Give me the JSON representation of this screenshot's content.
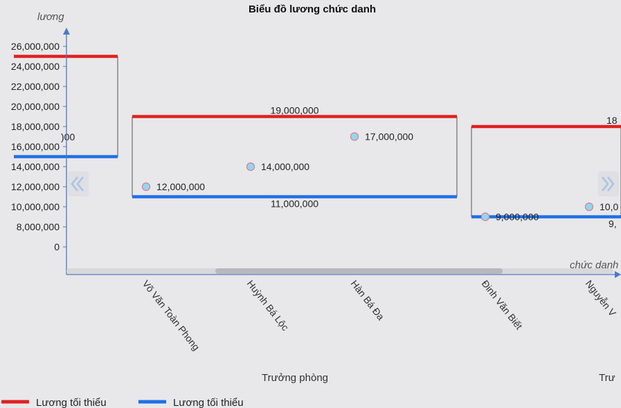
{
  "chart_data": {
    "type": "range-bar",
    "title": "Biểu đồ lương chức danh",
    "ylabel": "lương",
    "xlabel": "chức danh",
    "y_ticks": [
      0,
      8000000,
      10000000,
      12000000,
      14000000,
      16000000,
      18000000,
      20000000,
      22000000,
      24000000,
      26000000
    ],
    "y_tick_labels": [
      "0",
      "8,000,000",
      "10,000,000",
      "12,000,000",
      "14,000,000",
      "16,000,000",
      "18,000,000",
      "20,000,000",
      "22,000,000",
      "24,000,000",
      "26,000,000"
    ],
    "legend": [
      {
        "name": "Lương tối thiểu",
        "color": "#e02020"
      },
      {
        "name": "Lương tối thiểu",
        "color": "#1f6fe8"
      }
    ],
    "ranges": [
      {
        "group": "",
        "max": 25000000,
        "min": 15000000,
        "max_label": "",
        "min_label": "",
        "left_partial_label": ")00"
      },
      {
        "group": "Trưởng phòng",
        "max": 19000000,
        "min": 11000000,
        "max_label": "19,000,000",
        "min_label": "11,000,000"
      },
      {
        "group": "Trư",
        "max": 18000000,
        "min": 9000000,
        "max_label": "18",
        "min_label": "9,"
      }
    ],
    "points": [
      {
        "category": "Võ Văn Toàn Phong",
        "value": 12000000,
        "label": "12,000,000"
      },
      {
        "category": "Huỳnh Bá Lộc",
        "value": 14000000,
        "label": "14,000,000"
      },
      {
        "category": "Hàn Bá Đa",
        "value": 17000000,
        "label": "17,000,000"
      },
      {
        "category": "Đinh Văn Biết",
        "value": 9000000,
        "label": "9,000,000"
      },
      {
        "category": "Nguyễn V",
        "value": 10000000,
        "label": "10,0"
      }
    ],
    "colors": {
      "max": "#e02020",
      "min": "#1f6fe8",
      "point_fill": "#8fd8f2",
      "point_stroke": "#e07a8a",
      "axis": "#4a7ac8"
    }
  },
  "nav": {
    "prev_icon": "double-chevron-left-icon",
    "next_icon": "double-chevron-right-icon"
  }
}
